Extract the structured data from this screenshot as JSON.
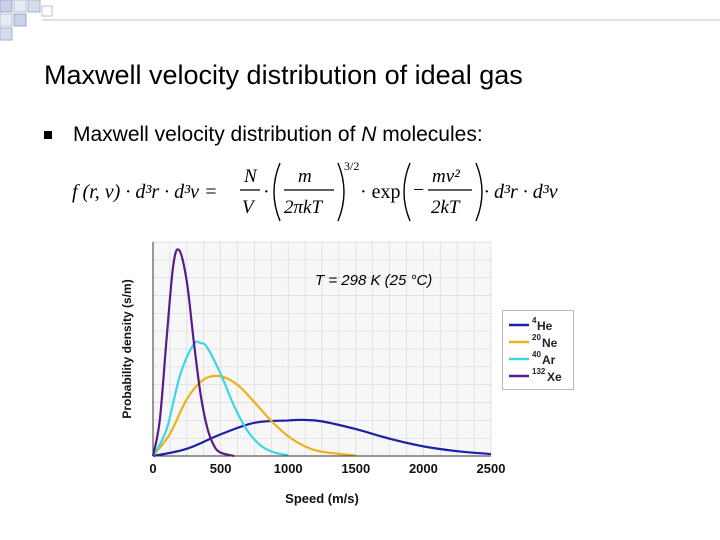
{
  "slide": {
    "title": "Maxwell velocity distribution of ideal gas",
    "bullet_prefix": "Maxwell velocity distribution of ",
    "bullet_var": "N",
    "bullet_suffix": " molecules:"
  },
  "formula": {
    "lhs": "f (r, v) · d³r · d³v =",
    "N": "N",
    "V": "V",
    "m": "m",
    "two_pi_kT": "2πkT",
    "exponent": "3/2",
    "exp": "· exp",
    "mv2": "mv²",
    "two_kT": "2kT",
    "minus": "−",
    "rhs": "· d³r · d³v",
    "dot": "·"
  },
  "colors": {
    "He": "#1f1fa8",
    "Ne": "#f0b01a",
    "Ar": "#3cd6e6",
    "Xe": "#5a1a8c",
    "axis_text": "#111111",
    "grid": "#d9d9d9"
  },
  "chart_data": {
    "type": "line",
    "title": "T = 298 K (25 °C)",
    "xlabel": "Speed (m/s)",
    "ylabel": "Probability density (s/m)",
    "xlim": [
      0,
      2500
    ],
    "xticks": [
      0,
      500,
      1000,
      1500,
      2000,
      2500
    ],
    "grid": true,
    "legend_position": "right",
    "series": [
      {
        "name": "4He",
        "mass_label": "4",
        "element": "He",
        "color": "#1f1fa8",
        "x": [
          0,
          250,
          500,
          750,
          1000,
          1113,
          1250,
          1500,
          1750,
          2000,
          2250,
          2500
        ],
        "y": [
          0,
          0.00015,
          0.00045,
          0.00069,
          0.00074,
          0.00075,
          0.00072,
          0.00056,
          0.00036,
          0.0002,
          0.0001,
          4e-05
        ]
      },
      {
        "name": "20Ne",
        "mass_label": "20",
        "element": "Ne",
        "color": "#f0b01a",
        "x": [
          0,
          125,
          250,
          375,
          498,
          625,
          750,
          875,
          1000,
          1125,
          1250,
          1500
        ],
        "y": [
          0,
          0.00046,
          0.00118,
          0.00159,
          0.00166,
          0.00148,
          0.00112,
          0.00073,
          0.00041,
          0.0002,
          9e-05,
          1e-05
        ]
      },
      {
        "name": "40Ar",
        "mass_label": "40",
        "element": "Ar",
        "color": "#3cd6e6",
        "x": [
          0,
          100,
          200,
          300,
          352,
          400,
          500,
          600,
          700,
          800,
          900,
          1000
        ],
        "y": [
          0,
          0.00055,
          0.00168,
          0.00232,
          0.00235,
          0.00226,
          0.00171,
          0.00104,
          0.00052,
          0.00021,
          7e-05,
          2e-05
        ]
      },
      {
        "name": "132Xe",
        "mass_label": "132",
        "element": "Xe",
        "color": "#5a1a8c",
        "x": [
          0,
          50,
          100,
          150,
          194,
          250,
          300,
          350,
          400,
          450,
          500,
          600
        ],
        "y": [
          0,
          0.00074,
          0.00242,
          0.00397,
          0.00428,
          0.00363,
          0.00242,
          0.00132,
          0.0006,
          0.00022,
          7e-05,
          0.0
        ]
      }
    ]
  }
}
